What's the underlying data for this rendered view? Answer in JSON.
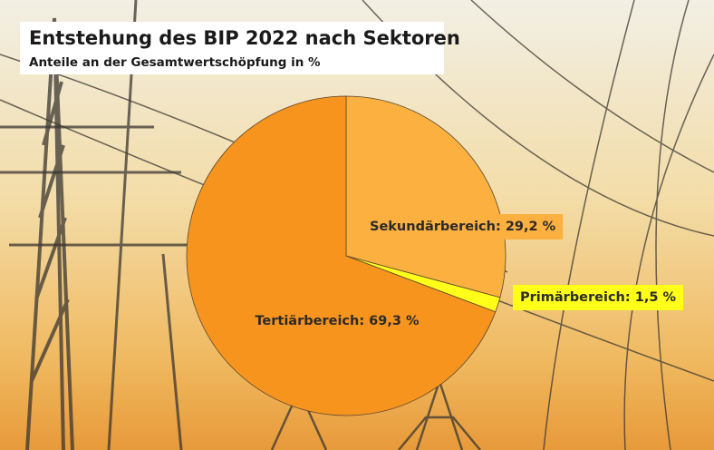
{
  "chart_data": {
    "type": "pie",
    "title": "Entstehung des BIP 2022 nach Sektoren",
    "subtitle": "Anteile an der Gesamtwertschöpfung in %",
    "values": [
      29.2,
      1.5,
      69.3
    ],
    "value_labels": [
      "Sekundärbereich: 29,2 %",
      "Primärbereich: 1,5 %",
      "Tertiärbereich: 69,3 %"
    ],
    "colors": [
      "#fbb040",
      "#ffff1a",
      "#f7941d"
    ]
  }
}
